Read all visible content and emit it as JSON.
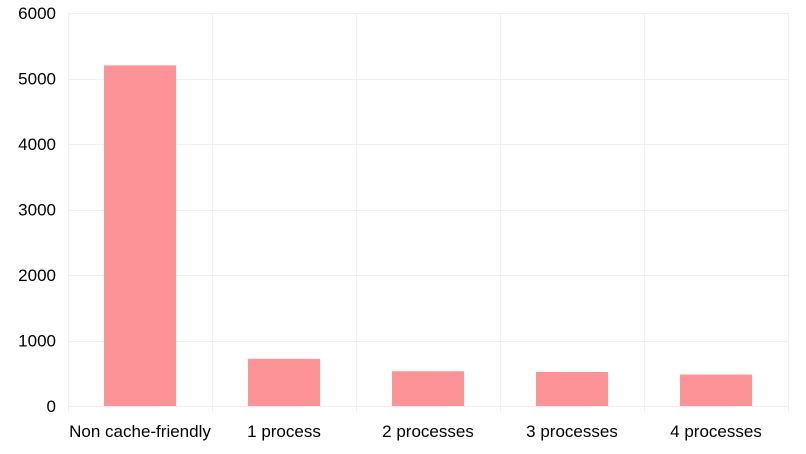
{
  "chart_data": {
    "type": "bar",
    "categories": [
      "Non cache-friendly",
      "1 process",
      "2 processes",
      "3 processes",
      "4 processes"
    ],
    "values": [
      5200,
      720,
      530,
      520,
      480
    ],
    "title": "",
    "xlabel": "",
    "ylabel": "",
    "ylim": [
      0,
      6000
    ],
    "yticks": [
      0,
      1000,
      2000,
      3000,
      4000,
      5000,
      6000
    ],
    "grid": true,
    "legend": "none",
    "bar_color": "#fd9397",
    "grid_color": "#f0f0f0"
  }
}
